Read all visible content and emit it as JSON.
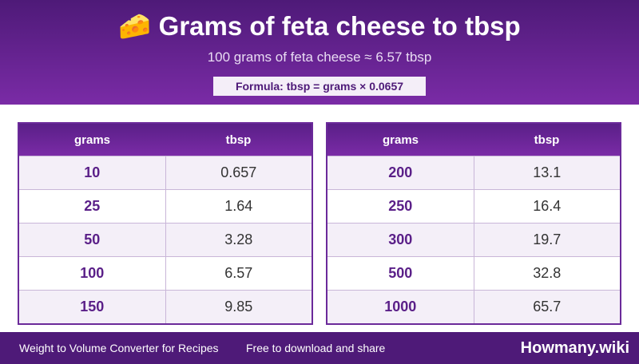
{
  "header": {
    "title": "🧀 Grams of feta cheese to tbsp",
    "subtitle": "100 grams of feta cheese ≈ 6.57 tbsp",
    "formula": "Formula: tbsp = grams × 0.0657"
  },
  "tables": [
    {
      "columns": [
        "grams",
        "tbsp"
      ],
      "rows": [
        [
          "10",
          "0.657"
        ],
        [
          "25",
          "1.64"
        ],
        [
          "50",
          "3.28"
        ],
        [
          "100",
          "6.57"
        ],
        [
          "150",
          "9.85"
        ]
      ]
    },
    {
      "columns": [
        "grams",
        "tbsp"
      ],
      "rows": [
        [
          "200",
          "13.1"
        ],
        [
          "250",
          "16.4"
        ],
        [
          "300",
          "19.7"
        ],
        [
          "500",
          "32.8"
        ],
        [
          "1000",
          "65.7"
        ]
      ]
    }
  ],
  "footer": {
    "left": "Weight to Volume Converter for Recipes",
    "middle": "Free to download and share",
    "brand": "Howmany.wiki"
  }
}
